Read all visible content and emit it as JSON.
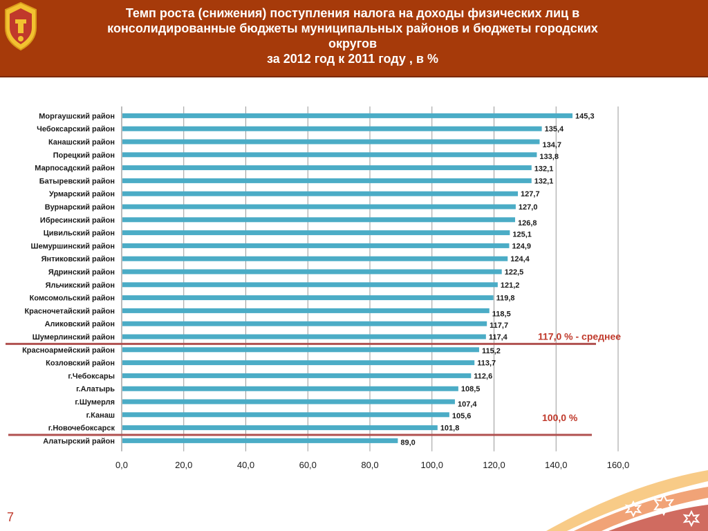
{
  "header": {
    "title_lines": [
      "Темп роста (снижения) поступления налога на доходы физических лиц в",
      "консолидированные бюджеты муниципальных районов и бюджеты городских",
      "округов",
      "за 2012 год к 2011 году , в %"
    ],
    "logo_icon": "chuvashia-emblem-icon"
  },
  "colors": {
    "header_bg": "#a63a0a",
    "bar": "#4bacc6",
    "reference_line": "#b0504f",
    "reference_text": "#c0392b"
  },
  "chart_data": {
    "type": "bar",
    "orientation": "horizontal",
    "categories": [
      "Моргаушский район",
      "Чебоксарский район",
      "Канашский район",
      "Порецкий район",
      "Марпосадский район",
      "Батыревский район",
      "Урмарский район",
      "Вурнарский район",
      "Ибресинский район",
      "Цивильский район",
      "Шемуршинский район",
      "Янтиковский район",
      "Ядринский район",
      "Яльчикский район",
      "Комсомольский район",
      "Красночетайский район",
      "Аликовский район",
      "Шумерлинский район",
      "Красноармейский район",
      "Козловский район",
      "г.Чебоксары",
      "г.Алатырь",
      "г.Шумерля",
      "г.Канаш",
      "г.Новочебоксарск",
      "Алатырский район"
    ],
    "values": [
      145.3,
      135.4,
      134.7,
      133.8,
      132.1,
      132.1,
      127.7,
      127.0,
      126.8,
      125.1,
      124.9,
      124.4,
      122.5,
      121.2,
      119.8,
      118.5,
      117.7,
      117.4,
      115.2,
      113.7,
      112.6,
      108.5,
      107.4,
      105.6,
      101.8,
      89.0
    ],
    "value_labels": [
      "145,3",
      "135,4",
      "134,7",
      "133,8",
      "132,1",
      "132,1",
      "127,7",
      "127,0",
      "126,8",
      "125,1",
      "124,9",
      "124,4",
      "122,5",
      "121,2",
      "119,8",
      "118,5",
      "117,7",
      "117,4",
      "115,2",
      "113,7",
      "112,6",
      "108,5",
      "107,4",
      "105,6",
      "101,8",
      "89,0"
    ],
    "xlim": [
      0,
      160
    ],
    "x_ticks": [
      0,
      20,
      40,
      60,
      80,
      100,
      120,
      140,
      160
    ],
    "x_tick_labels": [
      "0,0",
      "20,0",
      "40,0",
      "60,0",
      "80,0",
      "100,0",
      "120,0",
      "140,0",
      "160,0"
    ],
    "grid": "vertical",
    "reference_lines": [
      {
        "label": "117,0 %  - среднее",
        "after_category": "Шумерлинский район"
      },
      {
        "label": "100,0 %",
        "after_category": "г.Новочебоксарск"
      }
    ]
  },
  "footer": {
    "page_number": "7",
    "decoration_icon": "ornament-stars-icon"
  }
}
